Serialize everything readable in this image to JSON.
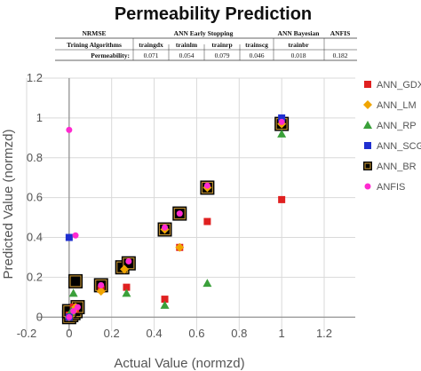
{
  "chart_data": {
    "type": "scatter",
    "title": "Permeability Prediction",
    "xlabel": "Actual Value (normzd)",
    "ylabel": "Predicted Value (normzd)",
    "xlim": [
      -0.2,
      1.2
    ],
    "ylim": [
      -0.07,
      1.2
    ],
    "xticks": [
      "-0.2",
      "0",
      "0.2",
      "0.4",
      "0.6",
      "0.8",
      "1",
      "1.2"
    ],
    "yticks": [
      "0",
      "0.2",
      "0.4",
      "0.6",
      "0.8",
      "1",
      "1.2"
    ],
    "grid": true,
    "legend_position": "right",
    "table": {
      "header_row1": [
        "NRMSE",
        "ANN Early Stopping",
        "ANN Bayesian",
        "ANFIS"
      ],
      "header_row2": [
        "Trining Algorithms",
        "traingdx",
        "trainlm",
        "trainrp",
        "trainscg",
        "trainbr"
      ],
      "row_label": "Permeability:",
      "values": [
        "0.071",
        "0.054",
        "0.079",
        "0.046",
        "0.018",
        "0.182"
      ]
    },
    "series": [
      {
        "name": "ANN_GDX",
        "color": "#e02020",
        "marker": "square",
        "points": [
          [
            0.27,
            0.15
          ],
          [
            0.45,
            0.09
          ],
          [
            0.52,
            0.35
          ],
          [
            0.65,
            0.48
          ],
          [
            1.0,
            0.59
          ],
          [
            0.02,
            0.05
          ],
          [
            0.0,
            0.01
          ],
          [
            0.15,
            0.14
          ],
          [
            0.03,
            0.04
          ]
        ]
      },
      {
        "name": "ANN_LM",
        "color": "#f0a500",
        "marker": "diamond",
        "points": [
          [
            0.0,
            0.0
          ],
          [
            0.02,
            0.03
          ],
          [
            0.03,
            0.05
          ],
          [
            0.15,
            0.13
          ],
          [
            0.26,
            0.24
          ],
          [
            0.45,
            0.44
          ],
          [
            0.52,
            0.35
          ],
          [
            0.65,
            0.65
          ],
          [
            1.0,
            0.97
          ],
          [
            0.01,
            0.02
          ]
        ]
      },
      {
        "name": "ANN_RP",
        "color": "#3aa03a",
        "marker": "triangle",
        "points": [
          [
            0.02,
            0.12
          ],
          [
            0.27,
            0.12
          ],
          [
            0.45,
            0.06
          ],
          [
            0.65,
            0.17
          ],
          [
            1.0,
            0.92
          ],
          [
            0.0,
            0.01
          ],
          [
            0.01,
            0.03
          ]
        ]
      },
      {
        "name": "ANN_SCG",
        "color": "#1f2fd0",
        "marker": "square",
        "points": [
          [
            0.0,
            0.4
          ],
          [
            1.0,
            1.0
          ],
          [
            0.0,
            0.0
          ]
        ]
      },
      {
        "name": "ANN_BR",
        "color": "#000000",
        "marker": "framed",
        "points": [
          [
            0.0,
            0.0
          ],
          [
            0.01,
            0.01
          ],
          [
            0.02,
            0.02
          ],
          [
            0.03,
            0.03
          ],
          [
            0.04,
            0.05
          ],
          [
            0.0,
            0.03
          ],
          [
            0.03,
            0.18
          ],
          [
            0.15,
            0.16
          ],
          [
            0.25,
            0.25
          ],
          [
            0.28,
            0.27
          ],
          [
            0.45,
            0.44
          ],
          [
            0.52,
            0.52
          ],
          [
            0.65,
            0.65
          ],
          [
            1.0,
            0.97
          ]
        ]
      },
      {
        "name": "ANFIS",
        "color": "#ff2ad0",
        "marker": "circle",
        "points": [
          [
            0.0,
            0.94
          ],
          [
            0.03,
            0.41
          ],
          [
            0.0,
            0.0
          ],
          [
            0.02,
            0.03
          ],
          [
            0.04,
            0.05
          ],
          [
            0.15,
            0.16
          ],
          [
            0.28,
            0.28
          ],
          [
            0.45,
            0.45
          ],
          [
            0.52,
            0.52
          ],
          [
            0.65,
            0.66
          ],
          [
            1.0,
            0.98
          ]
        ]
      }
    ]
  }
}
